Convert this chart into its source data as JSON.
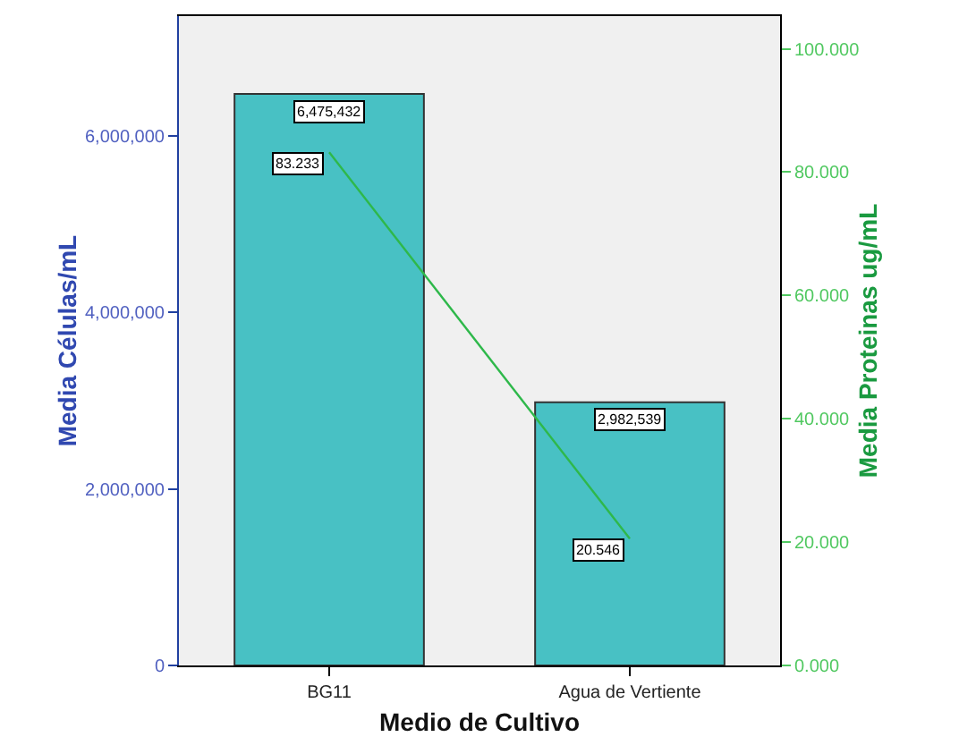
{
  "chart_data": {
    "type": "bar",
    "xlabel": "Medio de Cultivo",
    "ylabel": "Media Células/mL",
    "y2label": "Media Proteinas ug/mL",
    "categories": [
      "BG11",
      "Agua de Vertiente"
    ],
    "series": [
      {
        "color": "#48c1c4",
        "values": [
          6475432,
          2982539
        ],
        "value_labels": [
          "6,475,432",
          "2,982,539"
        ]
      },
      {
        "type": "line",
        "axis": "y2",
        "color": "#2eb84a",
        "values": [
          83.233,
          20.546
        ],
        "value_labels": [
          "83.233",
          "20.546"
        ],
        "marker": "none"
      }
    ],
    "ylim": [
      0,
      7358000
    ],
    "yticks": [
      {
        "value": 0,
        "label": "0"
      },
      {
        "value": 2000000,
        "label": "2,000,000"
      },
      {
        "value": 4000000,
        "label": "4,000,000"
      },
      {
        "value": 6000000,
        "label": "6,000,000"
      }
    ],
    "y2lim": [
      0,
      105.3
    ],
    "y2ticks": [
      {
        "value": 0,
        "label": "0.000"
      },
      {
        "value": 20,
        "label": "20.000"
      },
      {
        "value": 40,
        "label": "40.000"
      },
      {
        "value": 60,
        "label": "60.000"
      },
      {
        "value": 80,
        "label": "80.000"
      },
      {
        "value": 100,
        "label": "100.000"
      }
    ]
  }
}
